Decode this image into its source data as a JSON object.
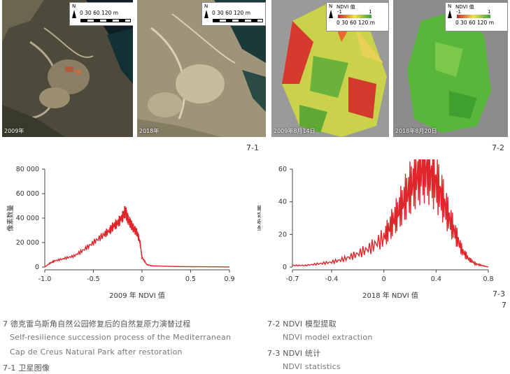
{
  "photos": [
    {
      "date": "2009年"
    },
    {
      "date": "2018年"
    },
    {
      "date": "2009年8月14日"
    },
    {
      "date": "2018年8月20日"
    }
  ],
  "scale": {
    "north": "N",
    "ticks": "0 30 60   120 m",
    "ndvi_title": "NDVI 值",
    "ndvi_low": "-1",
    "ndvi_high": "1"
  },
  "fig_labels": {
    "f71": "7-1",
    "f72": "7-2",
    "f73": "7-3",
    "page": "7"
  },
  "chart_data": [
    {
      "type": "line",
      "ylabel": "像素数量",
      "xlabel": "2009 年 NDVI 值",
      "xlim": [
        -1.0,
        0.9
      ],
      "ylim": [
        0,
        80000
      ],
      "x_ticks": [
        "-1.0",
        "-0.5",
        "0",
        "0.5",
        "0.9"
      ],
      "y_ticks": [
        "0",
        "20 000",
        "40 000",
        "60 000",
        "80 000"
      ],
      "color": "#e0262b",
      "series": [
        {
          "x": [
            -1.0,
            -0.95,
            -0.9,
            -0.8,
            -0.7,
            -0.6,
            -0.5,
            -0.4,
            -0.33,
            -0.3,
            -0.25,
            -0.2,
            -0.17,
            -0.15,
            -0.12,
            -0.1,
            -0.07,
            -0.05,
            -0.02,
            0.0,
            0.05,
            0.1,
            0.3,
            0.5,
            0.7,
            0.9
          ],
          "y": [
            0,
            3000,
            5000,
            7000,
            9000,
            14000,
            20000,
            26000,
            30000,
            33000,
            36000,
            41000,
            46000,
            40000,
            36000,
            33000,
            30000,
            28000,
            20000,
            8000,
            2000,
            1000,
            500,
            300,
            200,
            100
          ]
        }
      ]
    },
    {
      "type": "line",
      "ylabel": "像素数量",
      "xlabel": "2018 年 NDVI 值",
      "xlim": [
        -0.7,
        0.8
      ],
      "ylim": [
        0,
        60
      ],
      "x_ticks": [
        "-0.7",
        "-0.4",
        "0",
        "0.4",
        "0.8"
      ],
      "y_ticks": [
        "0",
        "20",
        "40",
        "60"
      ],
      "color": "#e0262b",
      "series": [
        {
          "x": [
            -0.7,
            -0.6,
            -0.5,
            -0.4,
            -0.3,
            -0.2,
            -0.1,
            0.0,
            0.05,
            0.1,
            0.15,
            0.2,
            0.25,
            0.3,
            0.35,
            0.4,
            0.45,
            0.5,
            0.55,
            0.6,
            0.65,
            0.7,
            0.75,
            0.8
          ],
          "y": [
            1,
            1,
            2,
            3,
            5,
            8,
            12,
            18,
            25,
            32,
            40,
            48,
            55,
            60,
            58,
            52,
            42,
            30,
            20,
            10,
            5,
            2,
            1,
            0
          ]
        }
      ]
    }
  ],
  "captions": {
    "main_cn": "7 德克雷乌斯角自然公园修复后的自然复原力演替过程",
    "main_en1": "Self-resilience succession process of the Mediterranean",
    "main_en2": "Cap de Creus Natural Park after restoration",
    "c71": "7-1 卫星图像",
    "c72_cn": "7-2 NDVI 模型提取",
    "c72_en": "NDVI model extraction",
    "c73_cn": "7-3 NDVI 统计",
    "c73_en": "NDVI statistics"
  }
}
